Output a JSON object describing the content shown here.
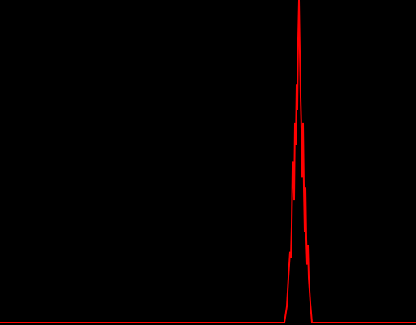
{
  "chart_data": {
    "type": "line",
    "title": "",
    "xlabel": "",
    "ylabel": "",
    "grid": false,
    "legend": "none",
    "background_color": "#000000",
    "xlim": [
      0,
      512
    ],
    "ylim": [
      0,
      1
    ],
    "series": [
      {
        "color": "#ff0000",
        "x": [
          0,
          350,
          353,
          355,
          357,
          358,
          359,
          360,
          361,
          362,
          363,
          364,
          365,
          366,
          367,
          368,
          369,
          370,
          371,
          372,
          373,
          374,
          375,
          376,
          377,
          378,
          379,
          380,
          382,
          384,
          512
        ],
        "y": [
          0,
          0,
          0.05,
          0.14,
          0.22,
          0.2,
          0.3,
          0.48,
          0.5,
          0.38,
          0.62,
          0.55,
          0.74,
          0.66,
          0.88,
          1.0,
          0.84,
          0.7,
          0.6,
          0.45,
          0.62,
          0.42,
          0.28,
          0.42,
          0.26,
          0.18,
          0.24,
          0.14,
          0.06,
          0,
          0
        ]
      }
    ]
  }
}
